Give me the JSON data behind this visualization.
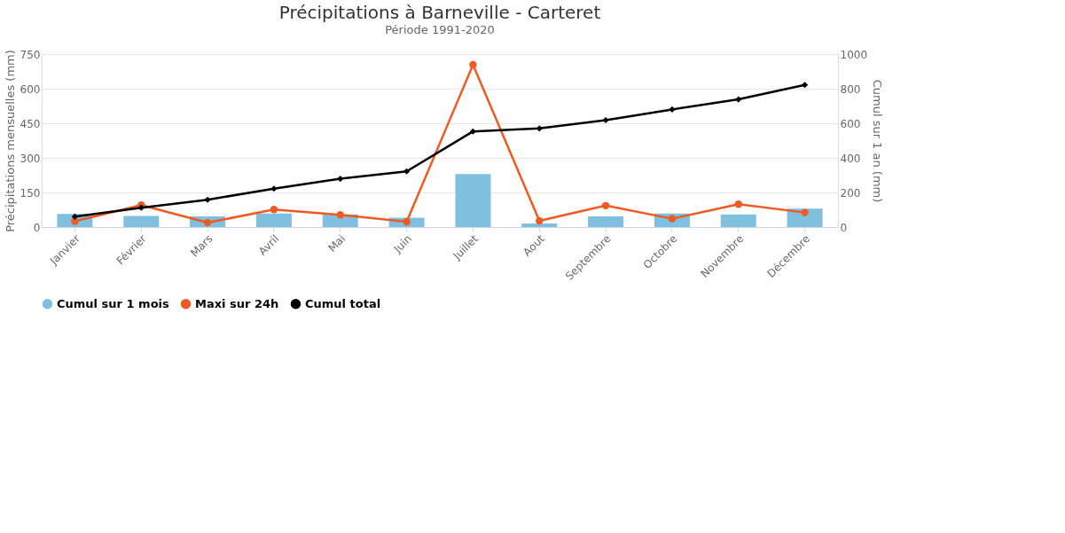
{
  "chart_data": {
    "type": "bar",
    "title": "Précipitations à Barneville - Carteret",
    "subtitle": "Période 1991-2020",
    "ylabel": "Précipitations mensuelles (mm)",
    "y2label": "Cumul sur 1 an (mm)",
    "categories": [
      "Janvier",
      "Février",
      "Mars",
      "Avril",
      "Mai",
      "Juin",
      "Juillet",
      "Aout",
      "Septembre",
      "Octobre",
      "Novembre",
      "Décembre"
    ],
    "series": [
      {
        "name": "Cumul sur 1 mois",
        "color": "#7fc0de",
        "values": [
          57,
          48,
          46,
          59,
          55,
          40,
          230,
          15,
          46,
          59,
          55,
          80
        ]
      },
      {
        "name": "Maxi sur 24h",
        "type": "line",
        "marker": "circle",
        "color": "#f05a22",
        "values": [
          25,
          95,
          19,
          76,
          53,
          23,
          704,
          27,
          93,
          36,
          99,
          63
        ]
      },
      {
        "name": "Cumul total",
        "type": "line",
        "marker": "diamond",
        "axis": "y2",
        "color": "#000000",
        "values": [
          60,
          112,
          158,
          222,
          279,
          322,
          553,
          570,
          618,
          680,
          738,
          822
        ]
      }
    ],
    "ylim": [
      0,
      750
    ],
    "yticks": [
      0,
      150,
      300,
      450,
      600,
      750
    ],
    "y2lim": [
      0,
      1000
    ],
    "y2ticks": [
      0,
      200,
      400,
      600,
      800,
      1000
    ],
    "grid": "y",
    "legend": "bottom"
  }
}
